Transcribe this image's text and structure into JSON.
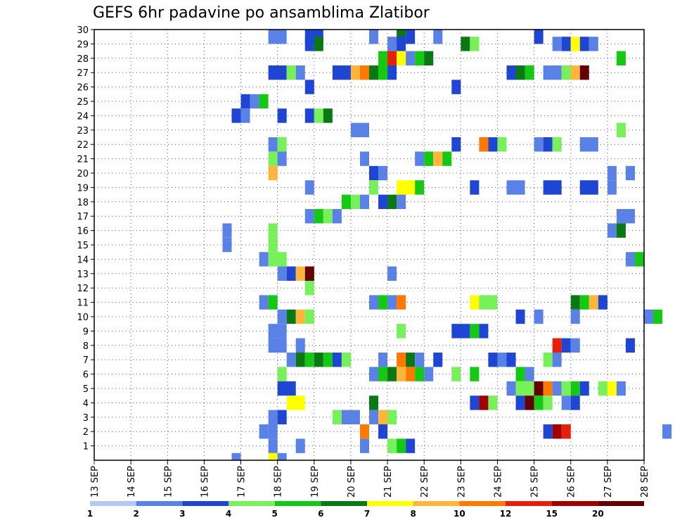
{
  "chart_data": {
    "type": "heatmap",
    "title": "GEFS 6hr padavine po ansamblima Zlatibor",
    "xlabel": "",
    "ylabel": "",
    "x_tick_labels": [
      "13 SEP",
      "14 SEP",
      "15 SEP",
      "16 SEP",
      "17 SEP",
      "18 SEP",
      "19 SEP",
      "20 SEP",
      "21 SEP",
      "22 SEP",
      "23 SEP",
      "24 SEP",
      "25 SEP",
      "26 SEP",
      "27 SEP",
      "28 SEP"
    ],
    "x_range_days": [
      13,
      28
    ],
    "time_step_hours": 6,
    "y_tick_labels": [
      "1",
      "2",
      "3",
      "4",
      "5",
      "6",
      "7",
      "8",
      "9",
      "10",
      "11",
      "12",
      "13",
      "14",
      "15",
      "16",
      "17",
      "18",
      "19",
      "20",
      "21",
      "22",
      "23",
      "24",
      "25",
      "26",
      "27",
      "28",
      "29",
      "30"
    ],
    "y_range": [
      0,
      30
    ],
    "grid": "dotted",
    "legend": {
      "position": "bottom",
      "labels": [
        "1",
        "2",
        "3",
        "4",
        "5",
        "6",
        "7",
        "8",
        "10",
        "12",
        "15",
        "20"
      ],
      "colors": [
        "#b4c8f5",
        "#5a82e6",
        "#1e46d2",
        "#78f05a",
        "#14c814",
        "#0a7814",
        "#ffff00",
        "#ffb43c",
        "#ff7800",
        "#e61e0a",
        "#a00000",
        "#640000"
      ]
    },
    "cells": [
      [
        17.75,
        30,
        2,
        1
      ],
      [
        18.75,
        30,
        2,
        2
      ],
      [
        20.5,
        30,
        1,
        1
      ],
      [
        21.25,
        30,
        1,
        5
      ],
      [
        21.5,
        30,
        1,
        2
      ],
      [
        22.25,
        30,
        1,
        1
      ],
      [
        25,
        30,
        1,
        2
      ],
      [
        18.75,
        29,
        1,
        2
      ],
      [
        19,
        29,
        1,
        5
      ],
      [
        21,
        29,
        1,
        1
      ],
      [
        21.25,
        29,
        1,
        2
      ],
      [
        23,
        29,
        1,
        5
      ],
      [
        23.25,
        29,
        1,
        3
      ],
      [
        25.5,
        29,
        1,
        1
      ],
      [
        25.75,
        29,
        1,
        2
      ],
      [
        26,
        29,
        1,
        6
      ],
      [
        26.25,
        29,
        1,
        2
      ],
      [
        26.5,
        29,
        1,
        1
      ],
      [
        20.75,
        28,
        1,
        4
      ],
      [
        21,
        28,
        1,
        9
      ],
      [
        21.25,
        28,
        1,
        6
      ],
      [
        21.5,
        28,
        1,
        1
      ],
      [
        21.75,
        28,
        1,
        4
      ],
      [
        22,
        28,
        1,
        5
      ],
      [
        27.25,
        28,
        1,
        4
      ],
      [
        17.75,
        27,
        2,
        2
      ],
      [
        18.25,
        27,
        1,
        3
      ],
      [
        18.5,
        27,
        1,
        1
      ],
      [
        19.5,
        27,
        2,
        2
      ],
      [
        20,
        27,
        1,
        7
      ],
      [
        20.25,
        27,
        1,
        8
      ],
      [
        20.5,
        27,
        1,
        5
      ],
      [
        20.75,
        27,
        1,
        4
      ],
      [
        21,
        27,
        1,
        2
      ],
      [
        24.25,
        27,
        1,
        2
      ],
      [
        24.5,
        27,
        1,
        5
      ],
      [
        24.75,
        27,
        1,
        4
      ],
      [
        25.25,
        27,
        2,
        1
      ],
      [
        25.75,
        27,
        1,
        3
      ],
      [
        26,
        27,
        1,
        7
      ],
      [
        26.25,
        27,
        1,
        11
      ],
      [
        18.75,
        26,
        1,
        2
      ],
      [
        22.75,
        26,
        1,
        2
      ],
      [
        17,
        25,
        1,
        2
      ],
      [
        17.25,
        25,
        1,
        1
      ],
      [
        17.5,
        25,
        1,
        4
      ],
      [
        16.75,
        24,
        1,
        2
      ],
      [
        17,
        24,
        1,
        1
      ],
      [
        18,
        24,
        1,
        2
      ],
      [
        18.75,
        24,
        1,
        2
      ],
      [
        19,
        24,
        1,
        3
      ],
      [
        19.25,
        24,
        1,
        5
      ],
      [
        20,
        23,
        2,
        1
      ],
      [
        27.25,
        23,
        1,
        3
      ],
      [
        17.75,
        22,
        1,
        1
      ],
      [
        18,
        22,
        1,
        3
      ],
      [
        22.75,
        22,
        1,
        2
      ],
      [
        23.5,
        22,
        1,
        8
      ],
      [
        23.75,
        22,
        1,
        2
      ],
      [
        24,
        22,
        1,
        3
      ],
      [
        25,
        22,
        1,
        1
      ],
      [
        25.25,
        22,
        1,
        2
      ],
      [
        25.5,
        22,
        1,
        3
      ],
      [
        26.25,
        22,
        2,
        1
      ],
      [
        17.75,
        21,
        1,
        3
      ],
      [
        18,
        21,
        1,
        1
      ],
      [
        20.25,
        21,
        1,
        1
      ],
      [
        21.75,
        21,
        1,
        1
      ],
      [
        22,
        21,
        1,
        4
      ],
      [
        22.25,
        21,
        1,
        7
      ],
      [
        22.5,
        21,
        1,
        4
      ],
      [
        17.75,
        20,
        1,
        7
      ],
      [
        20.5,
        20,
        1,
        2
      ],
      [
        20.75,
        20,
        1,
        1
      ],
      [
        27,
        20,
        1,
        1
      ],
      [
        27.5,
        20,
        1,
        1
      ],
      [
        18.75,
        19,
        1,
        1
      ],
      [
        20.5,
        19,
        1,
        3
      ],
      [
        21.25,
        19,
        2,
        6
      ],
      [
        21.75,
        19,
        1,
        4
      ],
      [
        23.25,
        19,
        1,
        2
      ],
      [
        24.25,
        19,
        2,
        1
      ],
      [
        25.25,
        19,
        2,
        2
      ],
      [
        26.25,
        19,
        2,
        2
      ],
      [
        27,
        19,
        1,
        1
      ],
      [
        19.75,
        18,
        1,
        4
      ],
      [
        20,
        18,
        1,
        3
      ],
      [
        20.25,
        18,
        1,
        1
      ],
      [
        20.75,
        18,
        1,
        2
      ],
      [
        21,
        18,
        1,
        5
      ],
      [
        21.25,
        18,
        1,
        1
      ],
      [
        18.75,
        17,
        1,
        1
      ],
      [
        19,
        17,
        1,
        4
      ],
      [
        19.25,
        17,
        1,
        3
      ],
      [
        19.5,
        17,
        1,
        1
      ],
      [
        27.25,
        17,
        2,
        1
      ],
      [
        16.5,
        16,
        1,
        1
      ],
      [
        17.75,
        16,
        1,
        3
      ],
      [
        27,
        16,
        1,
        1
      ],
      [
        27.25,
        16,
        1,
        5
      ],
      [
        16.5,
        15,
        1,
        1
      ],
      [
        17.75,
        15,
        1,
        3
      ],
      [
        17.5,
        14,
        1,
        1
      ],
      [
        17.75,
        14,
        2,
        3
      ],
      [
        27.5,
        14,
        1,
        1
      ],
      [
        27.75,
        14,
        1,
        4
      ],
      [
        18,
        13,
        1,
        1
      ],
      [
        18.25,
        13,
        1,
        2
      ],
      [
        18.5,
        13,
        1,
        7
      ],
      [
        18.75,
        13,
        1,
        11
      ],
      [
        21,
        13,
        1,
        1
      ],
      [
        18.75,
        12,
        1,
        3
      ],
      [
        17.5,
        11,
        1,
        1
      ],
      [
        17.75,
        11,
        1,
        4
      ],
      [
        20.5,
        11,
        1,
        1
      ],
      [
        20.75,
        11,
        1,
        4
      ],
      [
        21,
        11,
        1,
        1
      ],
      [
        21.25,
        11,
        1,
        8
      ],
      [
        23.25,
        11,
        1,
        6
      ],
      [
        23.5,
        11,
        2,
        3
      ],
      [
        26,
        11,
        1,
        5
      ],
      [
        26.25,
        11,
        1,
        4
      ],
      [
        26.5,
        11,
        1,
        7
      ],
      [
        26.75,
        11,
        1,
        2
      ],
      [
        18,
        10,
        1,
        1
      ],
      [
        18.25,
        10,
        1,
        5
      ],
      [
        18.5,
        10,
        1,
        7
      ],
      [
        18.75,
        10,
        1,
        3
      ],
      [
        24.5,
        10,
        1,
        2
      ],
      [
        25,
        10,
        1,
        1
      ],
      [
        26,
        10,
        1,
        1
      ],
      [
        28,
        10,
        1,
        1
      ],
      [
        28.25,
        10,
        1,
        4
      ],
      [
        17.75,
        9,
        2,
        1
      ],
      [
        21.25,
        9,
        1,
        3
      ],
      [
        22.75,
        9,
        2,
        2
      ],
      [
        23.25,
        9,
        1,
        4
      ],
      [
        23.5,
        9,
        1,
        2
      ],
      [
        17.75,
        8,
        2,
        1
      ],
      [
        18.5,
        8,
        1,
        1
      ],
      [
        25.5,
        8,
        1,
        9
      ],
      [
        25.75,
        8,
        1,
        2
      ],
      [
        26,
        8,
        1,
        1
      ],
      [
        27.5,
        8,
        1,
        2
      ],
      [
        18.25,
        7,
        1,
        1
      ],
      [
        18.5,
        7,
        1,
        5
      ],
      [
        18.75,
        7,
        1,
        4
      ],
      [
        19,
        7,
        1,
        5
      ],
      [
        19.25,
        7,
        1,
        4
      ],
      [
        19.5,
        7,
        1,
        2
      ],
      [
        19.75,
        7,
        1,
        3
      ],
      [
        20.75,
        7,
        1,
        1
      ],
      [
        21.25,
        7,
        1,
        8
      ],
      [
        21.5,
        7,
        1,
        5
      ],
      [
        21.75,
        7,
        1,
        1
      ],
      [
        22.25,
        7,
        1,
        2
      ],
      [
        23.75,
        7,
        1,
        2
      ],
      [
        24,
        7,
        1,
        1
      ],
      [
        24.25,
        7,
        1,
        2
      ],
      [
        25.25,
        7,
        1,
        3
      ],
      [
        25.5,
        7,
        1,
        1
      ],
      [
        18,
        6,
        1,
        3
      ],
      [
        20.5,
        6,
        1,
        1
      ],
      [
        20.75,
        6,
        1,
        4
      ],
      [
        21,
        6,
        1,
        5
      ],
      [
        21.25,
        6,
        1,
        7
      ],
      [
        21.5,
        6,
        1,
        8
      ],
      [
        21.75,
        6,
        1,
        4
      ],
      [
        22,
        6,
        1,
        1
      ],
      [
        22.75,
        6,
        1,
        3
      ],
      [
        23.25,
        6,
        1,
        4
      ],
      [
        24.5,
        6,
        1,
        4
      ],
      [
        24.75,
        6,
        1,
        1
      ],
      [
        18,
        5,
        2,
        2
      ],
      [
        24.25,
        5,
        1,
        1
      ],
      [
        24.5,
        5,
        2,
        3
      ],
      [
        25,
        5,
        1,
        11
      ],
      [
        25.25,
        5,
        1,
        8
      ],
      [
        25.5,
        5,
        1,
        1
      ],
      [
        25.75,
        5,
        1,
        3
      ],
      [
        26,
        5,
        1,
        4
      ],
      [
        26.25,
        5,
        1,
        2
      ],
      [
        26.75,
        5,
        1,
        3
      ],
      [
        27,
        5,
        1,
        6
      ],
      [
        27.25,
        5,
        1,
        1
      ],
      [
        18.25,
        4,
        2,
        6
      ],
      [
        20.5,
        4,
        1,
        5
      ],
      [
        23.25,
        4,
        1,
        2
      ],
      [
        23.5,
        4,
        1,
        10
      ],
      [
        23.75,
        4,
        1,
        3
      ],
      [
        24.5,
        4,
        1,
        2
      ],
      [
        24.75,
        4,
        1,
        11
      ],
      [
        25,
        4,
        1,
        4
      ],
      [
        25.25,
        4,
        1,
        3
      ],
      [
        25.75,
        4,
        1,
        1
      ],
      [
        26,
        4,
        1,
        2
      ],
      [
        17.75,
        3,
        1,
        1
      ],
      [
        18,
        3,
        1,
        2
      ],
      [
        19.5,
        3,
        1,
        3
      ],
      [
        19.75,
        3,
        1,
        1
      ],
      [
        20,
        3,
        1,
        1
      ],
      [
        20.5,
        3,
        1,
        1
      ],
      [
        20.75,
        3,
        1,
        7
      ],
      [
        21,
        3,
        1,
        3
      ],
      [
        17.5,
        2,
        1,
        1
      ],
      [
        17.75,
        2,
        1,
        1
      ],
      [
        20.25,
        2,
        1,
        8
      ],
      [
        20.75,
        2,
        1,
        2
      ],
      [
        25.25,
        2,
        1,
        2
      ],
      [
        25.5,
        2,
        1,
        10
      ],
      [
        25.75,
        2,
        1,
        9
      ],
      [
        28.5,
        2,
        1,
        1
      ],
      [
        17.75,
        1,
        1,
        1
      ],
      [
        18.5,
        1,
        1,
        1
      ],
      [
        20.25,
        1,
        1,
        1
      ],
      [
        21,
        1,
        1,
        3
      ],
      [
        21.25,
        1,
        1,
        4
      ],
      [
        21.5,
        1,
        1,
        2
      ],
      [
        16.75,
        0,
        1,
        1
      ],
      [
        17.75,
        0,
        1,
        6
      ],
      [
        18,
        0,
        1,
        1
      ]
    ]
  }
}
